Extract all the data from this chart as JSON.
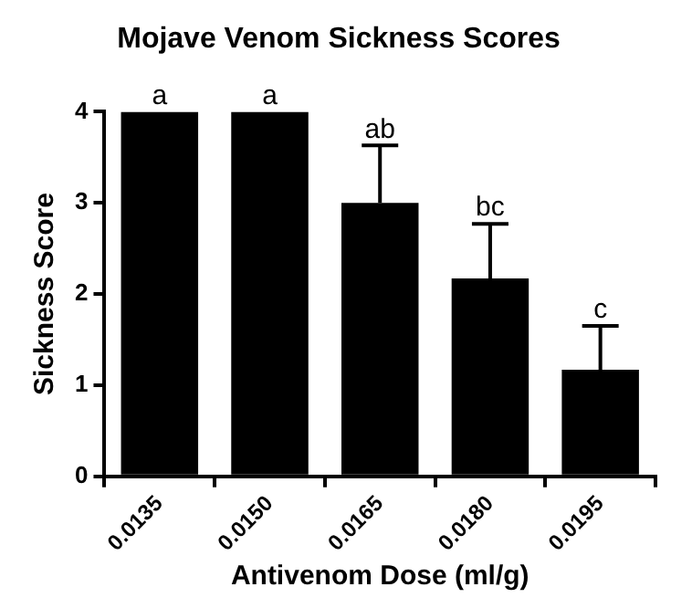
{
  "chart_data": {
    "type": "bar",
    "title": "Mojave Venom Sickness Scores",
    "xlabel": "Antivenom Dose (ml/g)",
    "ylabel": "Sickness Score",
    "categories": [
      "0.0135",
      "0.0150",
      "0.0165",
      "0.0180",
      "0.0195"
    ],
    "values": [
      4,
      4,
      3,
      2.17,
      1.17
    ],
    "color": "#000000",
    "errors": [
      null,
      null,
      [
        3,
        3.63
      ],
      [
        2.17,
        2.77
      ],
      [
        1.17,
        1.65
      ]
    ],
    "ylim": [
      0,
      4
    ],
    "yticks": [
      0,
      1,
      2,
      3,
      4
    ],
    "grid": false,
    "legend": false,
    "annotations": [
      {
        "text": "a",
        "x": "0.0135",
        "y": 4
      },
      {
        "text": "a",
        "x": "0.0150",
        "y": 4
      },
      {
        "text": "ab",
        "x": "0.0165",
        "y": 3.63
      },
      {
        "text": "bc",
        "x": "0.0180",
        "y": 2.77
      },
      {
        "text": "c",
        "x": "0.0195",
        "y": 1.65
      }
    ]
  }
}
